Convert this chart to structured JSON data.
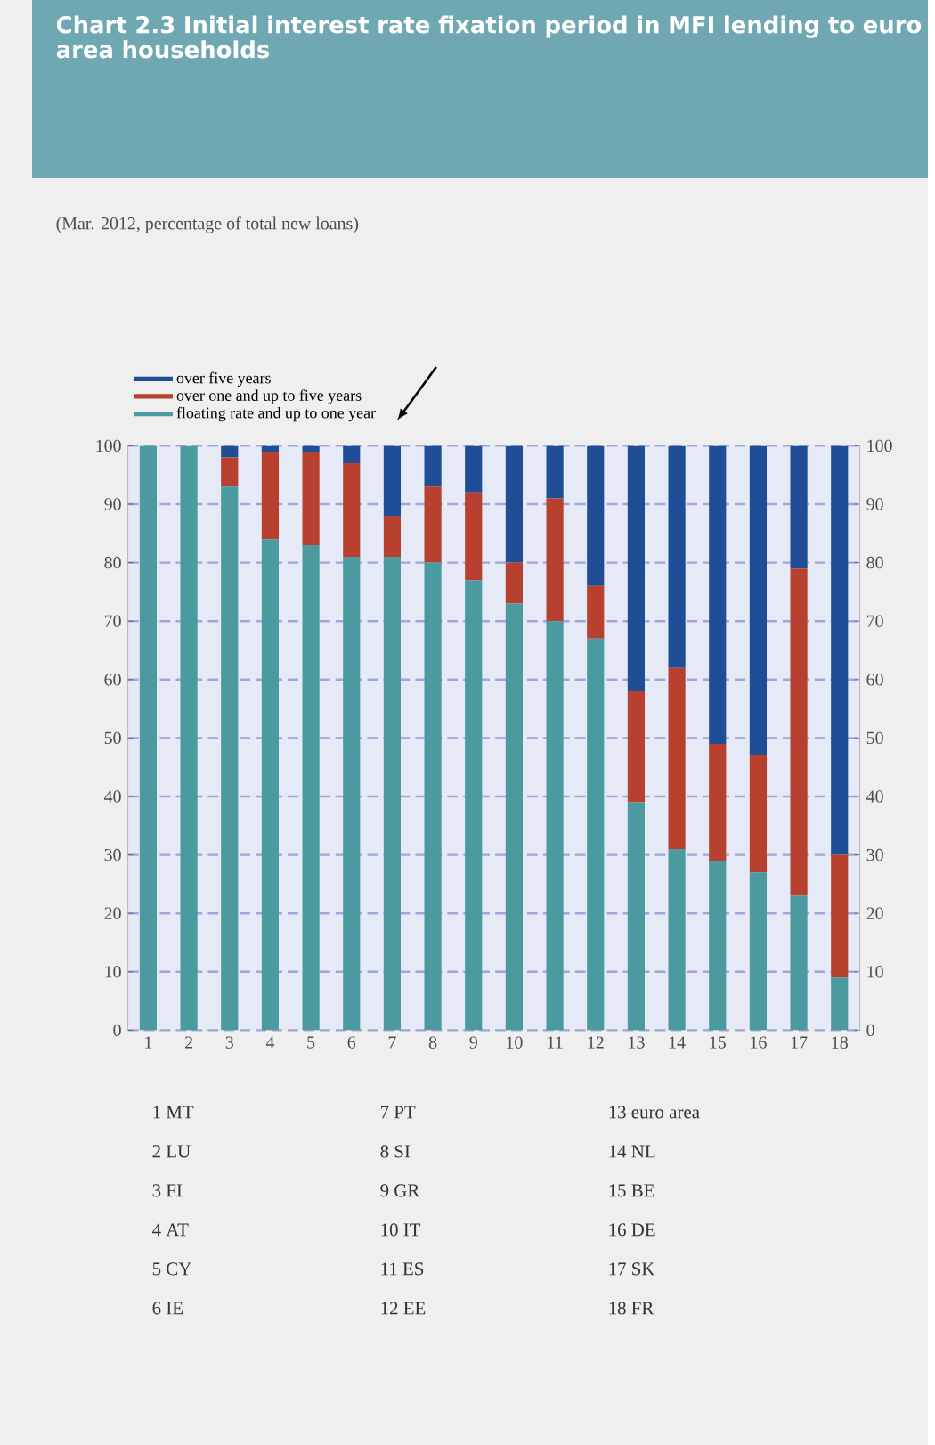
{
  "chart_data": {
    "type": "bar",
    "stacked": true,
    "title": "Chart 2.3 Initial interest rate fixation period in MFI lending to euro area households",
    "subtitle": "(Mar. 2012, percentage of total new loans)",
    "categories": [
      "1",
      "2",
      "3",
      "4",
      "5",
      "6",
      "7",
      "8",
      "9",
      "10",
      "11",
      "12",
      "13",
      "14",
      "15",
      "16",
      "17",
      "18"
    ],
    "series": [
      {
        "name": "floating rate and up to one year",
        "color": "#4a9aa0",
        "values": [
          100,
          100,
          93,
          84,
          83,
          81,
          81,
          80,
          77,
          73,
          70,
          67,
          39,
          31,
          29,
          27,
          23,
          9
        ]
      },
      {
        "name": "over one and up to five years",
        "color": "#b8402e",
        "values": [
          0,
          0,
          5,
          15,
          16,
          16,
          7,
          13,
          15,
          7,
          21,
          9,
          19,
          31,
          20,
          20,
          56,
          21
        ]
      },
      {
        "name": "over five years",
        "color": "#1f4e96",
        "values": [
          0,
          0,
          2,
          1,
          1,
          3,
          12,
          7,
          8,
          20,
          9,
          24,
          42,
          38,
          51,
          53,
          21,
          70
        ]
      }
    ],
    "ylim": [
      0,
      100
    ],
    "yticks": [
      0,
      10,
      20,
      30,
      40,
      50,
      60,
      70,
      80,
      90,
      100
    ],
    "y2lim": [
      0,
      100
    ],
    "y2ticks": [
      0,
      10,
      20,
      30,
      40,
      50,
      60,
      70,
      80,
      90,
      100
    ],
    "grid": "y",
    "legend": "top left",
    "annotations": [
      "1 MT",
      "2 LU",
      "3 FI",
      "4 AT",
      "5 CY",
      "6 IE",
      "7 PT",
      "8 SI",
      "9 GR",
      "10 IT",
      "11 ES",
      "12 EE",
      "13 euro area",
      "14 NL",
      "15 BE",
      "16 DE",
      "17 SK",
      "18 FR"
    ]
  }
}
